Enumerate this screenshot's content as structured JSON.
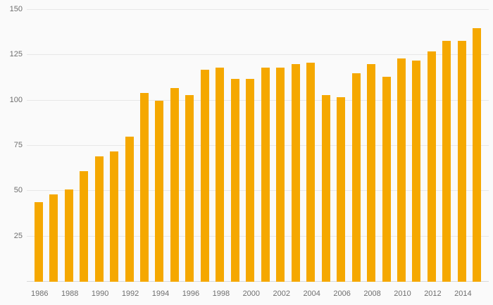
{
  "chart": {
    "background_color": "#fafafa",
    "bar_color": "#F5A800",
    "gridline_color": "#e7e7e7",
    "axis_line_color": "#d9d9d9",
    "label_color": "#6e6e6e"
  },
  "chart_data": {
    "type": "bar",
    "title": "",
    "xlabel": "",
    "ylabel": "",
    "categories": [
      "1986",
      "1987",
      "1988",
      "1989",
      "1990",
      "1991",
      "1992",
      "1993",
      "1994",
      "1995",
      "1996",
      "1997",
      "1998",
      "1999",
      "2000",
      "2001",
      "2002",
      "2003",
      "2004",
      "2005",
      "2006",
      "2007",
      "2008",
      "2009",
      "2010",
      "2011",
      "2012",
      "2013",
      "2014",
      "2015"
    ],
    "values": [
      44,
      48,
      51,
      61,
      69,
      72,
      80,
      104,
      100,
      107,
      103,
      117,
      118,
      112,
      112,
      118,
      118,
      120,
      121,
      103,
      102,
      115,
      120,
      113,
      123,
      122,
      127,
      133,
      133,
      140
    ],
    "ylim": [
      0,
      150
    ],
    "y_ticks": [
      0,
      25,
      50,
      75,
      100,
      125,
      150
    ],
    "x_tick_labels": [
      "1986",
      "1988",
      "1990",
      "1992",
      "1994",
      "1996",
      "1998",
      "2000",
      "2002",
      "2004",
      "2006",
      "2008",
      "2010",
      "2012",
      "2014"
    ],
    "grid": true,
    "legend": "none"
  }
}
